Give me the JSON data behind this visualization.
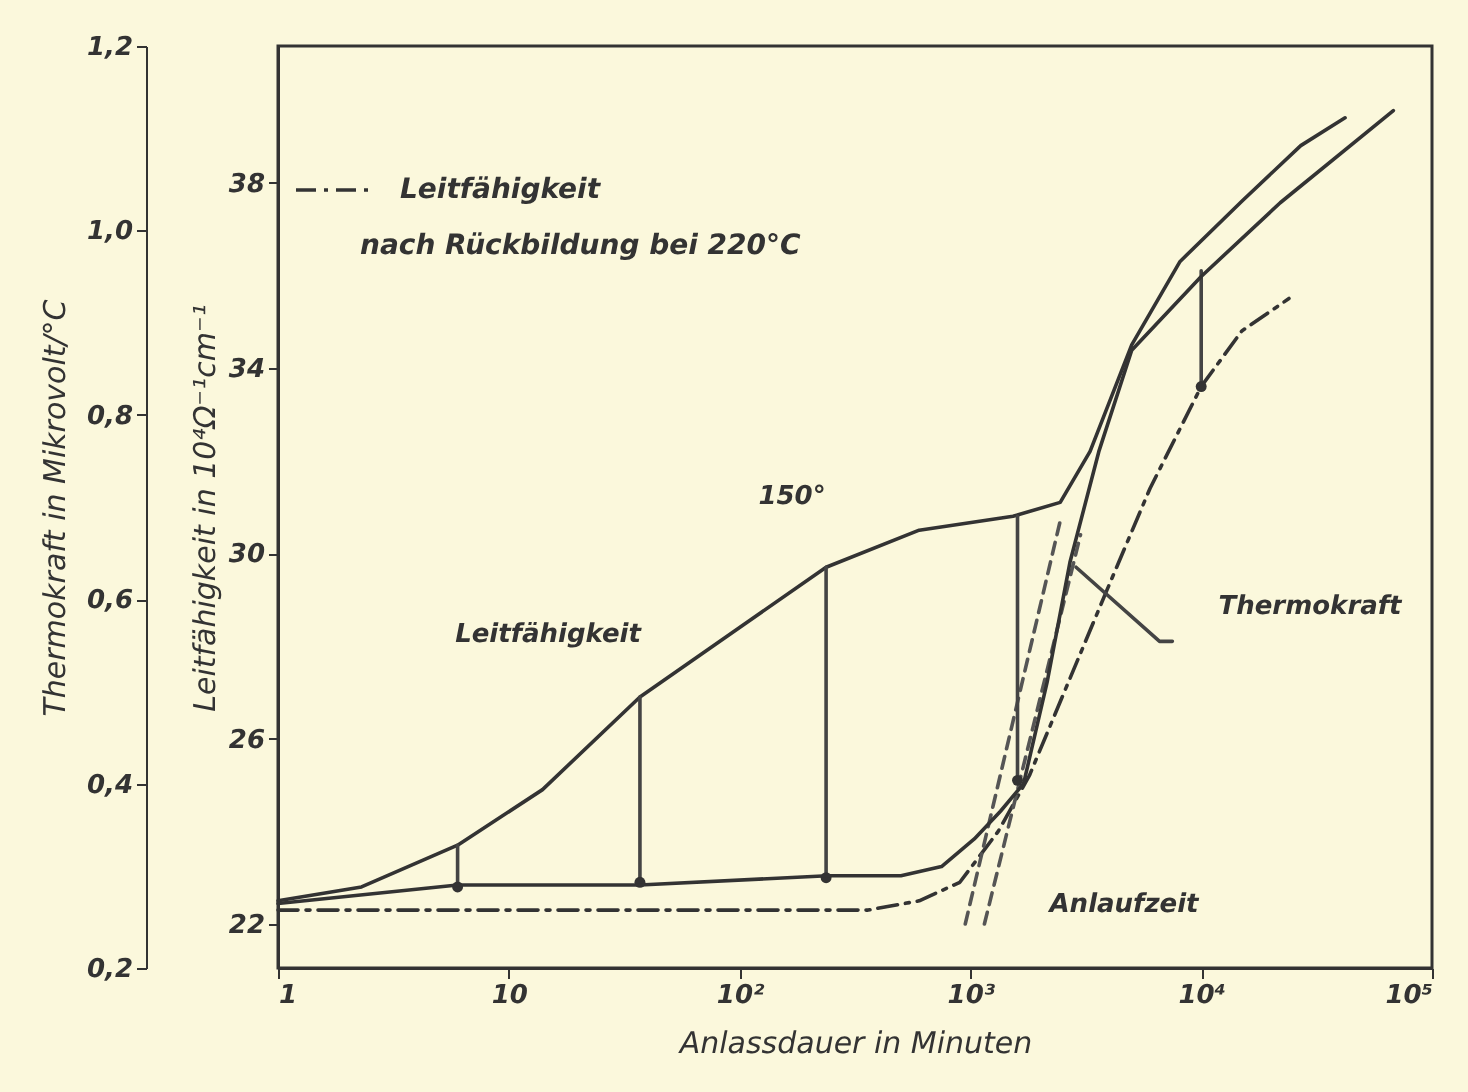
{
  "chart_data": {
    "type": "line",
    "xlabel": "Anlassdauer in Minuten",
    "ylabel": "Leitfähigkeit in 10⁴Ω⁻¹cm⁻¹",
    "y2label": "Thermokraft in Mikrovolt/°C",
    "xlim": [
      1,
      100000
    ],
    "xticks": [
      1,
      10,
      {
        "value": 100,
        "label": "10²"
      },
      {
        "value": 1000,
        "label": "10³"
      },
      {
        "value": 10000,
        "label": "10⁴"
      },
      {
        "value": 100000,
        "label": "10⁵"
      }
    ],
    "ylim": [
      21.05,
      40.95
    ],
    "yticks": [
      22,
      26,
      30,
      34,
      38
    ],
    "y2lim": [
      0.2,
      1.2
    ],
    "y2ticks": [
      {
        "value": 0.2,
        "label": "0,2"
      },
      {
        "value": 0.4,
        "label": "0,4"
      },
      {
        "value": 0.6,
        "label": "0,6"
      },
      {
        "value": 0.8,
        "label": "0,8"
      },
      {
        "value": 1.0,
        "label": "1,0"
      },
      {
        "value": 1.2,
        "label": "1,2"
      }
    ],
    "log": "x",
    "grid": false,
    "legend": "top left",
    "marker": "none",
    "series": [
      {
        "color": "#333333",
        "line_style": "solid",
        "x": [
          1,
          2.3,
          6,
          14,
          37,
          100,
          237,
          600,
          1530,
          2450,
          3300,
          5000,
          8100,
          15000,
          27000,
          42000
        ],
        "values": [
          22.5,
          22.8,
          23.7,
          24.9,
          26.9,
          28.4,
          29.7,
          30.5,
          30.8,
          31.1,
          32.2,
          34.5,
          36.3,
          37.6,
          38.8,
          39.4
        ]
      },
      {
        "axis": "y2",
        "color": "#333333",
        "line_style": "solid",
        "x": [
          1,
          6,
          37,
          240,
          500,
          750,
          1040,
          1350,
          1700,
          2150,
          2700,
          3600,
          5000,
          10000,
          22000,
          68000
        ],
        "values": [
          0.27,
          0.29,
          0.29,
          0.3,
          0.3,
          0.31,
          0.34,
          0.37,
          0.4,
          0.51,
          0.64,
          0.76,
          0.87,
          0.95,
          1.03,
          1.13
        ]
      },
      {
        "name": "Leitfähigkeit nach Rückbildung bei 220°C",
        "color": "#333333",
        "line_style": "dashdot",
        "x": [
          1,
          360,
          600,
          900,
          1320,
          1800,
          2700,
          3900,
          6000,
          10000,
          15000,
          24000
        ],
        "values": [
          22.3,
          22.3,
          22.5,
          22.9,
          24.0,
          25.2,
          27.3,
          29.2,
          31.4,
          33.6,
          34.8,
          35.5
        ]
      },
      {
        "color": "#555555",
        "line_style": "dashed",
        "x": [
          950,
          2450
        ],
        "values": [
          22.0,
          30.7
        ]
      },
      {
        "color": "#555555",
        "line_style": "dashed",
        "x": [
          1150,
          3000
        ],
        "values": [
          22.0,
          30.4
        ]
      },
      {
        "color": "#444444",
        "line_style": "solid",
        "x": [
          6,
          6
        ],
        "values": [
          23.7,
          22.8
        ]
      },
      {
        "color": "#444444",
        "line_style": "solid",
        "x": [
          37,
          37
        ],
        "values": [
          26.9,
          22.9
        ]
      },
      {
        "color": "#444444",
        "line_style": "solid",
        "x": [
          237,
          237
        ],
        "values": [
          29.7,
          23.0
        ]
      },
      {
        "color": "#444444",
        "line_style": "solid",
        "x": [
          1600,
          1600
        ],
        "values": [
          30.8,
          25.1
        ]
      },
      {
        "color": "#444444",
        "line_style": "solid",
        "x": [
          10000,
          10000
        ],
        "values": [
          36.1,
          33.6
        ]
      },
      {
        "color": "#444444",
        "line_style": "solid",
        "x": [
          2870,
          6600,
          7500
        ],
        "values": [
          29.7,
          28.1,
          28.1
        ]
      },
      {
        "type": "scatter",
        "color": "#333333",
        "marker": "circle",
        "x": [
          6,
          37,
          237,
          1600,
          10000
        ],
        "values": [
          22.8,
          22.9,
          23.0,
          25.1,
          33.6
        ]
      }
    ],
    "annotations": [
      "150°",
      "Leitfähigkeit",
      "Thermokraft",
      "Anlaufzeit"
    ]
  }
}
